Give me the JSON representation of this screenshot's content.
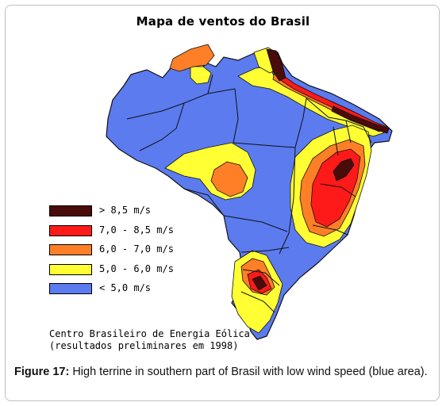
{
  "map": {
    "title": "Mapa de ventos do Brasil"
  },
  "legend": [
    {
      "label": "> 8,5 m/s",
      "color": "#4a0b0b"
    },
    {
      "label": "7,0 - 8,5 m/s",
      "color": "#ff1a1a"
    },
    {
      "label": "6,0 - 7,0 m/s",
      "color": "#ff7f27"
    },
    {
      "label": "5,0 - 6,0 m/s",
      "color": "#ffff33"
    },
    {
      "label": "< 5,0 m/s",
      "color": "#5b7bef"
    }
  ],
  "source": {
    "line1": "Centro Brasileiro de Energia Eólica",
    "line2": "(resultados preliminares em 1998)"
  },
  "caption": {
    "label": "Figure 17:",
    "text": " High terrine in southern part of Brasil with low wind speed (blue area)."
  }
}
